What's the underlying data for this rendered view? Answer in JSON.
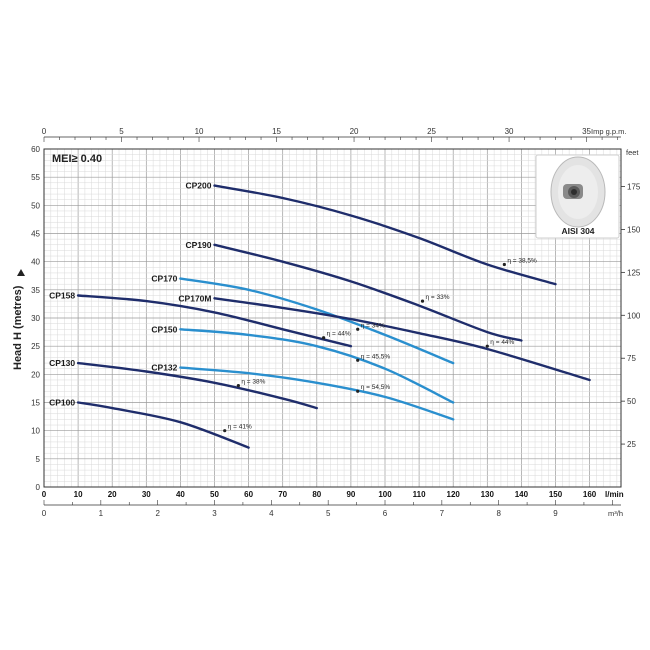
{
  "chart_data": {
    "type": "line",
    "meta_label": "MEI≥ 0.40",
    "ylabel": "Head H (metres)",
    "y_right_unit": "feet",
    "x_top_unit": "Imp g.p.m.",
    "x_bottom_unit": "l/min",
    "x_bottom2_unit": "m³/h",
    "xlim": [
      0,
      170
    ],
    "ylim": [
      0,
      60
    ],
    "grid": true,
    "y_ticks": [
      0,
      5,
      10,
      15,
      20,
      25,
      30,
      35,
      40,
      45,
      50,
      55,
      60
    ],
    "x_ticks": [
      0,
      10,
      20,
      30,
      40,
      50,
      60,
      70,
      80,
      90,
      100,
      110,
      120,
      130,
      140,
      150,
      160
    ],
    "top_ticks": [
      0,
      5,
      10,
      15,
      20,
      25,
      30,
      35
    ],
    "m3h_ticks": [
      0,
      1,
      2,
      3,
      4,
      5,
      6,
      7,
      8,
      9
    ],
    "feet_ticks": [
      25,
      50,
      75,
      100,
      125,
      150,
      175
    ],
    "inset_label": "AISI 304",
    "series": [
      {
        "name": "CP200",
        "color": "#1f2d6b",
        "x": [
          50,
          70,
          90,
          110,
          130,
          150
        ],
        "y": [
          53.5,
          51.3,
          48.2,
          44.2,
          39.5,
          36
        ],
        "eta": "η = 38,5%",
        "eta_at": [
          135,
          39.5
        ]
      },
      {
        "name": "CP190",
        "color": "#1f2d6b",
        "x": [
          50,
          70,
          90,
          110,
          130,
          140
        ],
        "y": [
          43,
          40,
          36.5,
          32.2,
          27.5,
          26
        ],
        "eta": "η = 33%",
        "eta_at": [
          111,
          33
        ]
      },
      {
        "name": "CP170",
        "color": "#2a8fce",
        "x": [
          40,
          60,
          80,
          100,
          120
        ],
        "y": [
          37,
          35,
          31.5,
          27,
          22
        ],
        "eta": "η = 34%",
        "eta_at": [
          92,
          28
        ]
      },
      {
        "name": "CP170M",
        "color": "#1f2d6b",
        "x": [
          50,
          70,
          90,
          110,
          130,
          160
        ],
        "y": [
          33.5,
          31.8,
          29.8,
          27.3,
          24.5,
          19
        ],
        "eta": "η = 44%",
        "eta_at": [
          130,
          25
        ]
      },
      {
        "name": "CP158",
        "color": "#1f2d6b",
        "x": [
          10,
          30,
          50,
          70,
          90
        ],
        "y": [
          34,
          33,
          31,
          28,
          25
        ],
        "eta": "η = 44%",
        "eta_at": [
          82,
          26.5
        ]
      },
      {
        "name": "CP150",
        "color": "#2a8fce",
        "x": [
          40,
          60,
          80,
          100,
          120
        ],
        "y": [
          28,
          27,
          25,
          21,
          15
        ],
        "eta": "η = 45,5%",
        "eta_at": [
          92,
          22.5
        ]
      },
      {
        "name": "CP132",
        "color": "#2a8fce",
        "x": [
          40,
          60,
          80,
          100,
          120
        ],
        "y": [
          21.2,
          20.2,
          18.5,
          16,
          12
        ],
        "eta": "η = 54,5%",
        "eta_at": [
          92,
          17
        ]
      },
      {
        "name": "CP130",
        "color": "#1f2d6b",
        "x": [
          10,
          30,
          50,
          70,
          80
        ],
        "y": [
          22,
          20.5,
          18.5,
          15.7,
          14
        ],
        "eta": "η = 38%",
        "eta_at": [
          57,
          18
        ]
      },
      {
        "name": "CP100",
        "color": "#1f2d6b",
        "x": [
          10,
          20,
          40,
          60
        ],
        "y": [
          15,
          14,
          11.5,
          7
        ],
        "eta": "η = 41%",
        "eta_at": [
          53,
          10
        ]
      }
    ]
  }
}
